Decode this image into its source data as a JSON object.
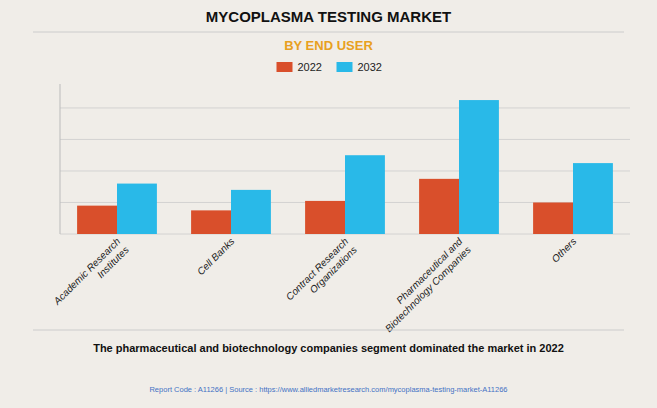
{
  "chart_data": {
    "type": "bar",
    "title": "MYCOPLASMA TESTING MARKET",
    "subtitle": "BY END USER",
    "categories": [
      "Academic Research\nInstitutes",
      "Cell Banks",
      "Contract Research\nOrganizations",
      "Pharmaceutical and\nBiotechnology Companies",
      "Others"
    ],
    "series": [
      {
        "name": "2022",
        "color": "#d94f2b",
        "values": [
          1.8,
          1.5,
          2.1,
          3.5,
          2.0
        ]
      },
      {
        "name": "2032",
        "color": "#29b9e8",
        "values": [
          3.2,
          2.8,
          5.0,
          8.5,
          4.5
        ]
      }
    ],
    "ylim": [
      0,
      9.52
    ],
    "yticks": [
      0,
      2,
      4,
      6,
      8
    ],
    "grid": true,
    "legend": "top",
    "tick_labels": "x",
    "annotations": [
      "The pharmaceutical and biotechnology companies segment dominated the market in 2022",
      "Report Code : A11266  |  Source : https://www.alliedmarketresearch.com/mycoplasma-testing-market-A11266"
    ]
  }
}
